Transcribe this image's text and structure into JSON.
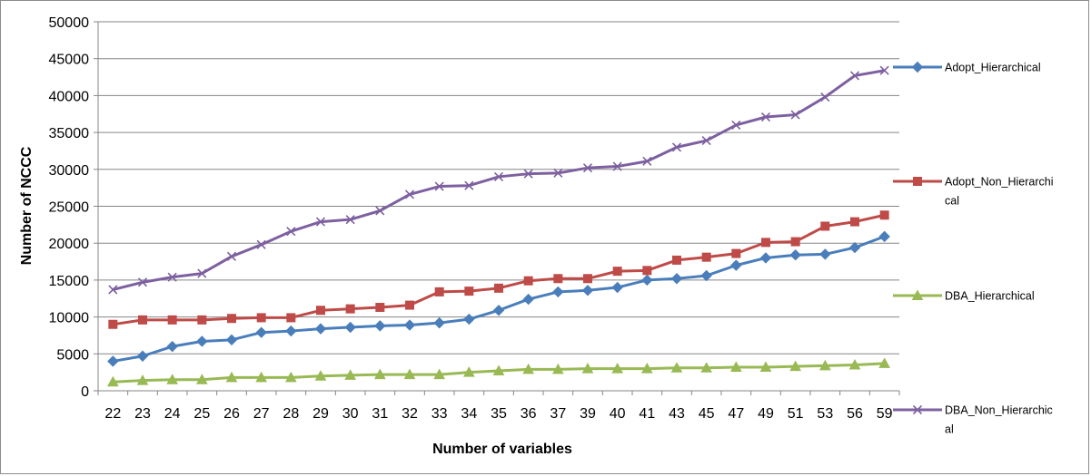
{
  "chart_data": {
    "type": "line",
    "title": "",
    "xlabel": "Number of variables",
    "ylabel": "Number of NCCC",
    "ylim": [
      0,
      50000
    ],
    "yticks": [
      0,
      5000,
      10000,
      15000,
      20000,
      25000,
      30000,
      35000,
      40000,
      45000,
      50000
    ],
    "categories": [
      "22",
      "23",
      "24",
      "25",
      "26",
      "27",
      "28",
      "29",
      "30",
      "31",
      "32",
      "33",
      "34",
      "35",
      "36",
      "37",
      "39",
      "40",
      "41",
      "43",
      "45",
      "47",
      "49",
      "51",
      "53",
      "56",
      "59"
    ],
    "grid": true,
    "legend_position": "right",
    "series": [
      {
        "name": "Adopt_Hierarchical",
        "legend_lines": [
          "Adopt_Hierarchical"
        ],
        "color": "#4a7ebb",
        "marker": "diamond",
        "values": [
          4000,
          4700,
          6000,
          6700,
          6900,
          7900,
          8100,
          8400,
          8600,
          8800,
          8900,
          9200,
          9700,
          10900,
          12400,
          13400,
          13600,
          14000,
          15000,
          15200,
          15600,
          17000,
          18000,
          18400,
          18500,
          19400,
          20900
        ]
      },
      {
        "name": "Adopt_Non_Hierarchical",
        "legend_lines": [
          "Adopt_Non_Hierarchi",
          "cal"
        ],
        "color": "#be4b48",
        "marker": "square",
        "values": [
          9000,
          9600,
          9600,
          9600,
          9800,
          9900,
          9900,
          10900,
          11100,
          11300,
          11600,
          13400,
          13500,
          13900,
          14900,
          15200,
          15200,
          16200,
          16300,
          17700,
          18100,
          18600,
          20100,
          20200,
          22300,
          22900,
          23800
        ]
      },
      {
        "name": "DBA_Hierarchical",
        "legend_lines": [
          "DBA_Hierarchical"
        ],
        "color": "#98b954",
        "marker": "triangle",
        "values": [
          1200,
          1400,
          1500,
          1500,
          1800,
          1800,
          1800,
          2000,
          2100,
          2200,
          2200,
          2200,
          2500,
          2700,
          2900,
          2900,
          3000,
          3000,
          3000,
          3100,
          3100,
          3200,
          3200,
          3300,
          3400,
          3500,
          3700
        ]
      },
      {
        "name": "DBA_Non_Hierarchical",
        "legend_lines": [
          "DBA_Non_Hierarchic",
          "al"
        ],
        "color": "#7d60a0",
        "marker": "x",
        "values": [
          13700,
          14700,
          15400,
          15900,
          18200,
          19800,
          21600,
          22900,
          23200,
          24400,
          26600,
          27700,
          27800,
          29000,
          29400,
          29500,
          30200,
          30400,
          31100,
          33000,
          33900,
          36000,
          37100,
          37400,
          39800,
          42700,
          43400
        ]
      }
    ]
  }
}
